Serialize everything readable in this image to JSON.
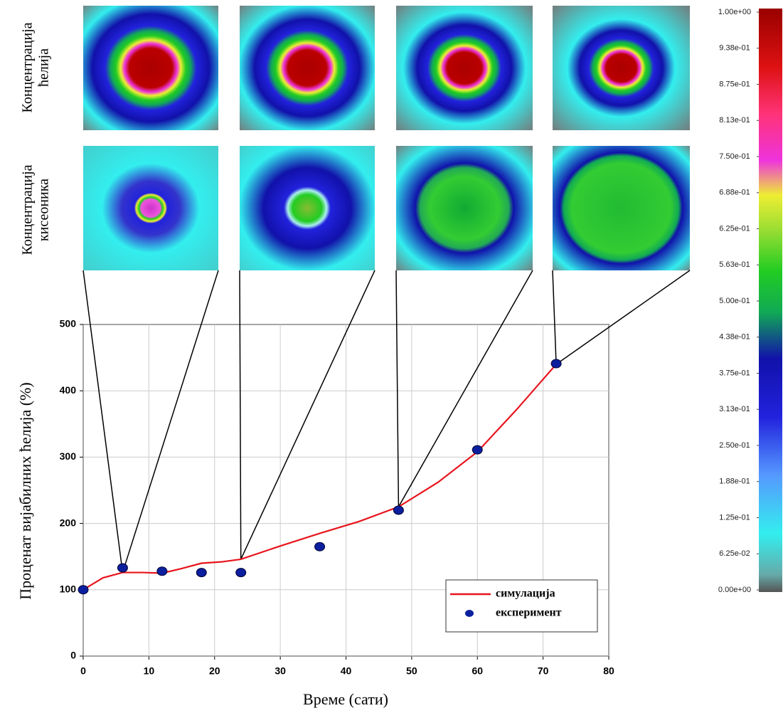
{
  "chart_data": [
    {
      "type": "line",
      "x_label": "Време (сати)",
      "y_label": "Проценат вијабилних ћелија (%)",
      "xlim": [
        0,
        80
      ],
      "xticks": [
        0,
        10,
        20,
        30,
        40,
        50,
        60,
        70,
        80
      ],
      "ylim": [
        0,
        500
      ],
      "yticks": [
        0,
        100,
        200,
        300,
        400,
        500
      ],
      "grid": true,
      "legend": "lower right",
      "series": [
        {
          "name": "симулација",
          "type": "line",
          "color": "#e8141c",
          "x": [
            0,
            3,
            6,
            9,
            12,
            15,
            18,
            21,
            24,
            30,
            36,
            42,
            48,
            54,
            60,
            66,
            72
          ],
          "values": [
            100,
            118,
            126,
            126,
            125,
            132,
            140,
            142,
            146,
            166,
            185,
            203,
            225,
            262,
            308,
            372,
            440
          ]
        },
        {
          "name": "експеримент",
          "type": "scatter",
          "color": "#0b1f9e",
          "x": [
            0,
            6,
            12,
            18,
            24,
            36,
            48,
            60,
            72
          ],
          "values": [
            100,
            133,
            128,
            126,
            126,
            165,
            220,
            311,
            441
          ]
        }
      ]
    },
    {
      "type": "colorbar",
      "ylim": [
        0,
        1
      ],
      "yticks": [
        {
          "value": 1,
          "label": "1.00e+00"
        },
        {
          "value": 0.9375,
          "label": "9.38e-01"
        },
        {
          "value": 0.875,
          "label": "8.75e-01"
        },
        {
          "value": 0.8125,
          "label": "8.13e-01"
        },
        {
          "value": 0.75,
          "label": "7.50e-01"
        },
        {
          "value": 0.6875,
          "label": "6.88e-01"
        },
        {
          "value": 0.625,
          "label": "6.25e-01"
        },
        {
          "value": 0.5625,
          "label": "5.63e-01"
        },
        {
          "value": 0.5,
          "label": "5.00e-01"
        },
        {
          "value": 0.4375,
          "label": "4.38e-01"
        },
        {
          "value": 0.375,
          "label": "3.75e-01"
        },
        {
          "value": 0.3125,
          "label": "3.13e-01"
        },
        {
          "value": 0.25,
          "label": "2.50e-01"
        },
        {
          "value": 0.1875,
          "label": "1.88e-01"
        },
        {
          "value": 0.125,
          "label": "1.25e-01"
        },
        {
          "value": 0.0625,
          "label": "6.25e-02"
        },
        {
          "value": 0,
          "label": "0.00e+00"
        }
      ]
    }
  ],
  "row_labels": [
    [
      "Концентрација",
      "ћелија"
    ],
    [
      "Концентрација",
      "кисеоника"
    ]
  ]
}
